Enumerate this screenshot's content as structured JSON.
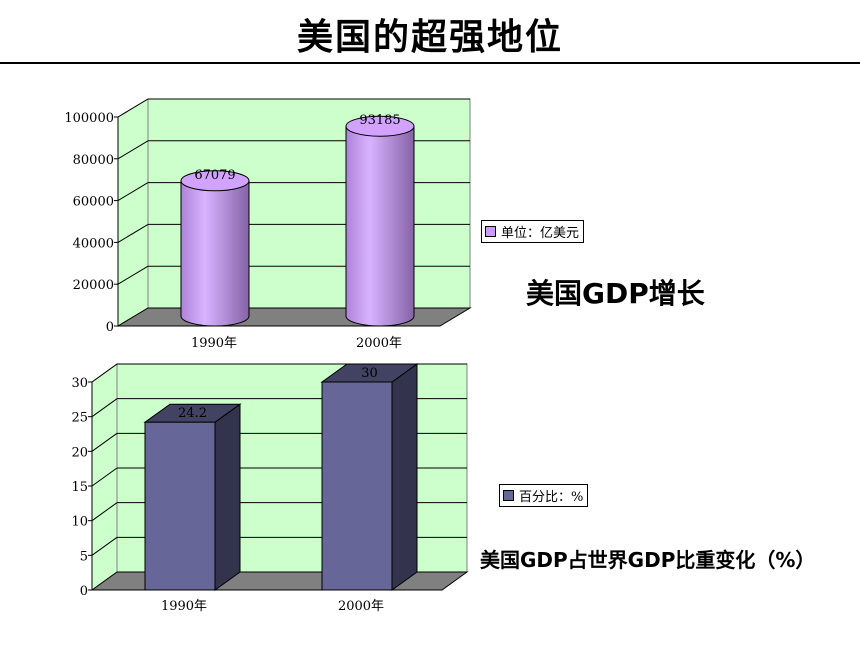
{
  "page": {
    "title": "美国的超强地位"
  },
  "chart_data": [
    {
      "type": "bar",
      "style": "3d-cylinder",
      "caption": "美国GDP增长",
      "categories": [
        "1990年",
        "2000年"
      ],
      "series": [
        {
          "name": "单位：亿美元",
          "values": [
            67079,
            93185
          ],
          "color": "#cc99ff"
        }
      ],
      "data_labels": [
        "67079",
        "93185"
      ],
      "ylim": [
        0,
        100000
      ],
      "yticks": [
        0,
        20000,
        40000,
        60000,
        80000,
        100000
      ],
      "ytick_labels": [
        "0",
        "20000",
        "40000",
        "60000",
        "80000",
        "100000"
      ],
      "grid": true,
      "background": "#ccffcc",
      "floor_color": "#808080",
      "legend": "right"
    },
    {
      "type": "bar",
      "style": "3d-box",
      "caption": "美国GDP占世界GDP比重变化（%）",
      "categories": [
        "1990年",
        "2000年"
      ],
      "series": [
        {
          "name": "百分比：%",
          "values": [
            24.2,
            30
          ],
          "color": "#666699"
        }
      ],
      "data_labels": [
        "24.2",
        "30"
      ],
      "ylim": [
        0,
        30
      ],
      "yticks": [
        0,
        5,
        10,
        15,
        20,
        25,
        30
      ],
      "ytick_labels": [
        "0",
        "5",
        "10",
        "15",
        "20",
        "25",
        "30"
      ],
      "grid": true,
      "background": "#ccffcc",
      "floor_color": "#808080",
      "legend": "right"
    }
  ]
}
